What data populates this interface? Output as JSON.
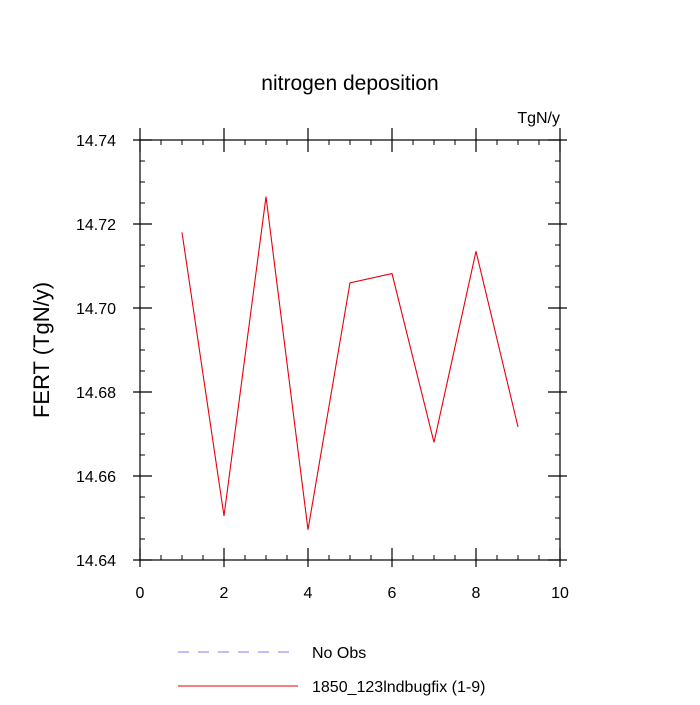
{
  "chart_data": {
    "type": "line",
    "title": "nitrogen deposition",
    "units_label": "TgN/y",
    "xlabel": "",
    "ylabel": "FERT  (TgN/y)",
    "xlim": [
      0,
      10
    ],
    "ylim": [
      14.64,
      14.74
    ],
    "x_ticks": [
      0,
      2,
      4,
      6,
      8,
      10
    ],
    "x_tick_labels": [
      "0",
      "2",
      "4",
      "6",
      "8",
      "10"
    ],
    "y_ticks": [
      14.64,
      14.66,
      14.68,
      14.7,
      14.72,
      14.74
    ],
    "y_tick_labels": [
      "14.64",
      "14.66",
      "14.68",
      "14.70",
      "14.72",
      "14.74"
    ],
    "grid": false,
    "legend_position": "bottom",
    "series": [
      {
        "name": "1850_123lndbugfix (1-9)",
        "color": "#e8000b",
        "dash": "solid",
        "x": [
          1,
          2,
          3,
          4,
          5,
          6,
          7,
          8,
          9
        ],
        "values": [
          14.718,
          14.6505,
          14.7265,
          14.6472,
          14.706,
          14.7082,
          14.668,
          14.7135,
          14.6717
        ]
      }
    ],
    "legend": [
      {
        "label": "No Obs",
        "color": "#7b7bff",
        "dash": "dashed"
      },
      {
        "label": "1850_123lndbugfix (1-9)",
        "color": "#e8000b",
        "dash": "solid"
      }
    ]
  }
}
